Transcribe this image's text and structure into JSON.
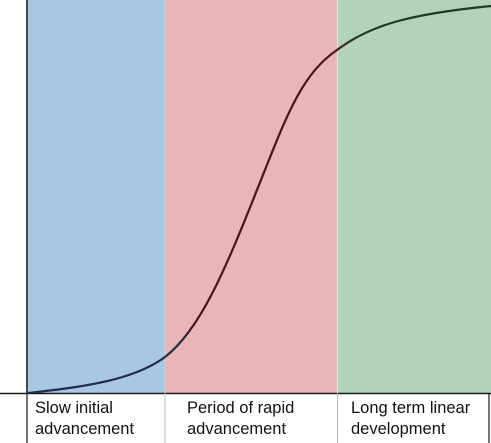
{
  "phases": [
    {
      "id": "slow",
      "label_lines": [
        "Slow initial",
        "advancement"
      ],
      "color": "#a9c6e3"
    },
    {
      "id": "rapid",
      "label_lines": [
        "Period of rapid",
        "advancement"
      ],
      "color": "#e9b5b6"
    },
    {
      "id": "linear",
      "label_lines": [
        "Long term linear",
        "development"
      ],
      "color": "#b1d3b8"
    }
  ],
  "curve": {
    "color_start": "#1c2e4a",
    "color_mid": "#4a1418",
    "color_end": "#1f3a25"
  },
  "axis_color": "#1a1a1a"
}
